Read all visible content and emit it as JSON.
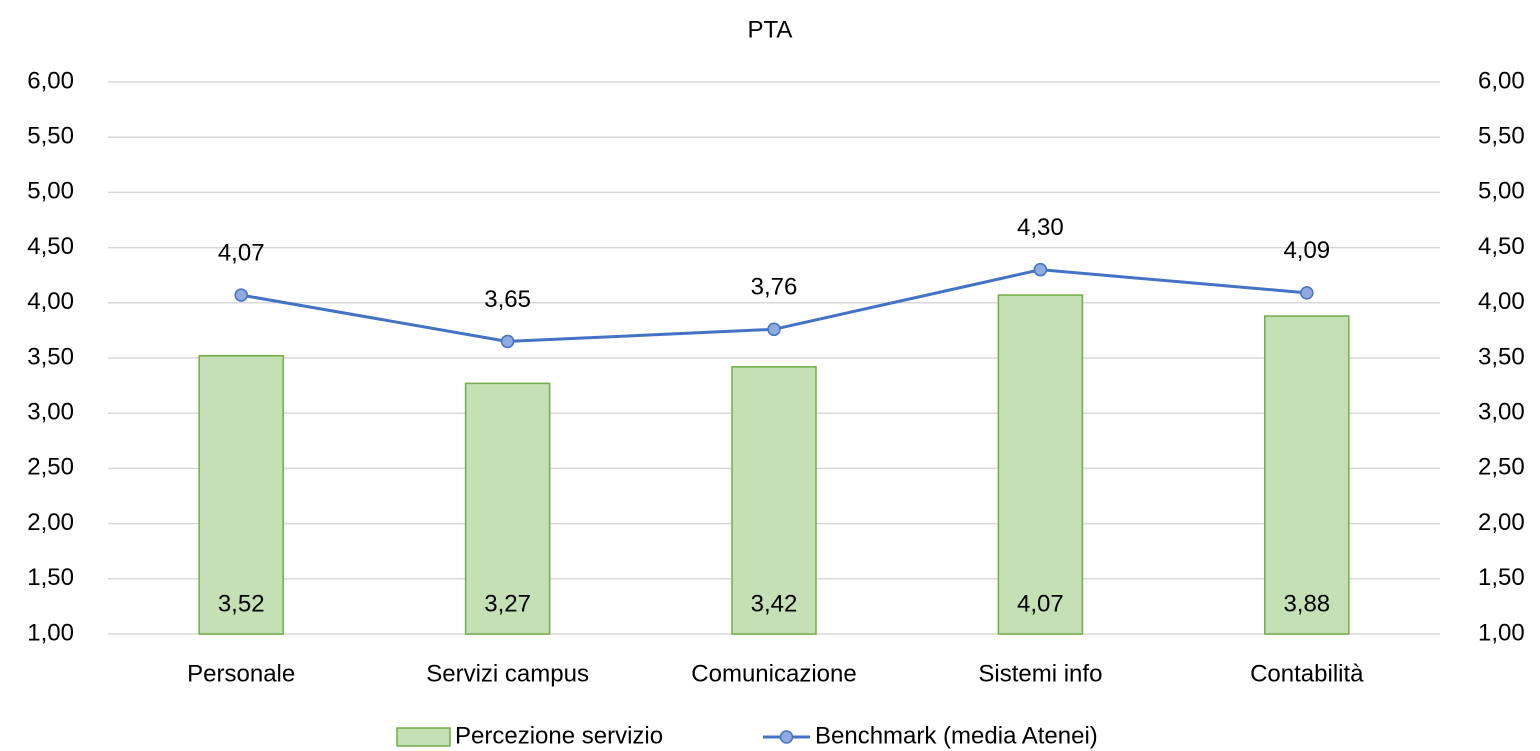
{
  "chart_data": {
    "type": "combo",
    "title": "PTA",
    "categories": [
      "Personale",
      "Servizi campus",
      "Comunicazione",
      "Sistemi info",
      "Contabilità"
    ],
    "series": [
      {
        "name": "Percezione servizio",
        "type": "bar",
        "color": "#c5e0b4",
        "edge_color": "#70ad47",
        "values": [
          3.52,
          3.27,
          3.42,
          4.07,
          3.88
        ],
        "value_labels": [
          "3,52",
          "3,27",
          "3,42",
          "4,07",
          "3,88"
        ]
      },
      {
        "name": "Benchmark (media Atenei)",
        "type": "line",
        "axis": "y2",
        "color": "#4472c4",
        "marker_color": "#8faadc",
        "values": [
          4.07,
          3.65,
          3.76,
          4.3,
          4.09
        ],
        "value_labels": [
          "4,07",
          "3,65",
          "3,76",
          "4,30",
          "4,09"
        ]
      }
    ],
    "ylim": [
      1,
      6
    ],
    "yticks": [
      {
        "value": 1,
        "label": "1,00"
      },
      {
        "value": 1.5,
        "label": "1,50"
      },
      {
        "value": 2,
        "label": "2,00"
      },
      {
        "value": 2.5,
        "label": "2,50"
      },
      {
        "value": 3,
        "label": "3,00"
      },
      {
        "value": 3.5,
        "label": "3,50"
      },
      {
        "value": 4,
        "label": "4,00"
      },
      {
        "value": 4.5,
        "label": "4,50"
      },
      {
        "value": 5,
        "label": "5,00"
      },
      {
        "value": 5.5,
        "label": "5,50"
      },
      {
        "value": 6,
        "label": "6,00"
      }
    ],
    "y2lim": [
      1,
      6
    ],
    "y2ticks": [
      {
        "value": 1,
        "label": "1,00"
      },
      {
        "value": 1.5,
        "label": "1,50"
      },
      {
        "value": 2,
        "label": "2,00"
      },
      {
        "value": 2.5,
        "label": "2,50"
      },
      {
        "value": 3,
        "label": "3,00"
      },
      {
        "value": 3.5,
        "label": "3,50"
      },
      {
        "value": 4,
        "label": "4,00"
      },
      {
        "value": 4.5,
        "label": "4,50"
      },
      {
        "value": 5,
        "label": "5,00"
      },
      {
        "value": 5.5,
        "label": "5,50"
      },
      {
        "value": 6,
        "label": "6,00"
      }
    ],
    "grid": true,
    "legend": "bottom"
  }
}
